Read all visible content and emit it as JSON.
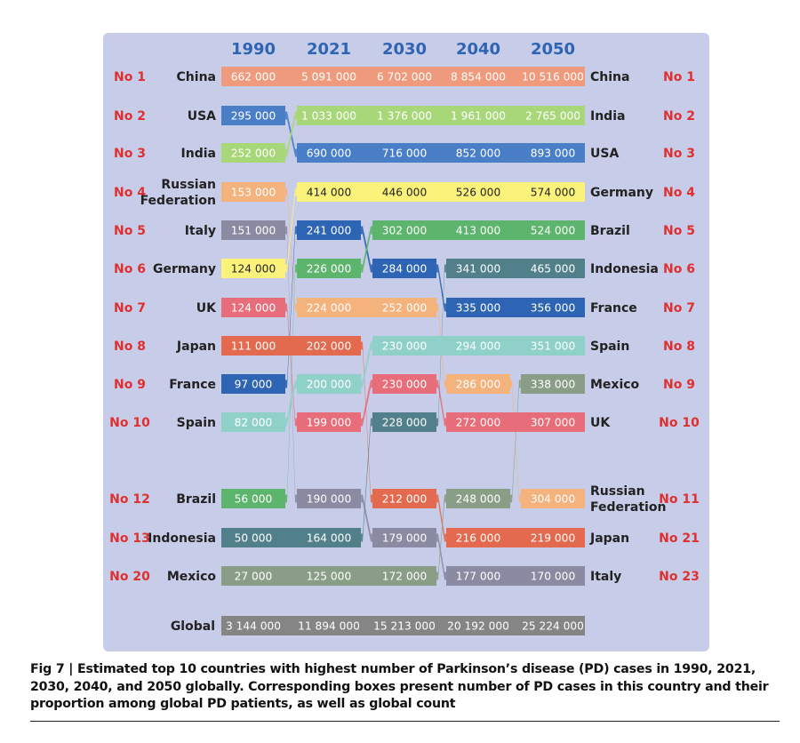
{
  "chart_data": {
    "type": "bump",
    "years": [
      "1990",
      "2021",
      "2030",
      "2040",
      "2050"
    ],
    "countries": [
      {
        "name": "China",
        "color": "#ef9a7c",
        "values": [
          662000,
          5091000,
          6702000,
          8854000,
          10516000
        ],
        "display": [
          "662 000",
          "5 091 000",
          "6 702 000",
          "8 854 000",
          "10 516 000"
        ],
        "ranks": [
          1,
          1,
          1,
          1,
          1
        ]
      },
      {
        "name": "USA",
        "color": "#4a7fc8",
        "values": [
          295000,
          690000,
          716000,
          852000,
          893000
        ],
        "display": [
          "295 000",
          "690 000",
          "716 000",
          "852 000",
          "893 000"
        ],
        "ranks": [
          2,
          3,
          3,
          3,
          3
        ]
      },
      {
        "name": "India",
        "color": "#a8d779",
        "values": [
          252000,
          1033000,
          1376000,
          1961000,
          2765000
        ],
        "display": [
          "252 000",
          "1 033 000",
          "1 376 000",
          "1 961 000",
          "2 765 000"
        ],
        "ranks": [
          3,
          2,
          2,
          2,
          2
        ]
      },
      {
        "name": "Russian\nFederation",
        "color": "#f4b27d",
        "values": [
          153000,
          224000,
          252000,
          286000,
          304000
        ],
        "display": [
          "153 000",
          "224 000",
          "252 000",
          "286 000",
          "304 000"
        ],
        "ranks": [
          4,
          7,
          7,
          9,
          11
        ]
      },
      {
        "name": "Italy",
        "color": "#8a8aa3",
        "values": [
          151000,
          190000,
          179000,
          177000,
          170000
        ],
        "display": [
          "151 000",
          "190 000",
          "179 000",
          "177 000",
          "170 000"
        ],
        "ranks": [
          5,
          12,
          13,
          20,
          23
        ]
      },
      {
        "name": "Germany",
        "color": "#fbf27b",
        "values": [
          124000,
          414000,
          446000,
          526000,
          574000
        ],
        "display": [
          "124 000",
          "414 000",
          "446 000",
          "526 000",
          "574 000"
        ],
        "ranks": [
          6,
          4,
          4,
          4,
          4
        ]
      },
      {
        "name": "UK",
        "color": "#e86d7a",
        "values": [
          124000,
          199000,
          230000,
          272000,
          307000
        ],
        "display": [
          "124 000",
          "199 000",
          "230 000",
          "272 000",
          "307 000"
        ],
        "ranks": [
          7,
          10,
          9,
          10,
          10
        ]
      },
      {
        "name": "Japan",
        "color": "#e46a4f",
        "values": [
          111000,
          202000,
          212000,
          216000,
          219000
        ],
        "display": [
          "111 000",
          "202 000",
          "212 000",
          "216 000",
          "219 000"
        ],
        "ranks": [
          8,
          8,
          12,
          13,
          21
        ]
      },
      {
        "name": "France",
        "color": "#2d65b4",
        "values": [
          97000,
          241000,
          284000,
          335000,
          356000
        ],
        "display": [
          "97 000",
          "241 000",
          "284 000",
          "335 000",
          "356 000"
        ],
        "ranks": [
          9,
          5,
          6,
          7,
          7
        ]
      },
      {
        "name": "Spain",
        "color": "#8fd0c8",
        "values": [
          82000,
          200000,
          230000,
          294000,
          351000
        ],
        "display": [
          "82 000",
          "200 000",
          "230 000",
          "294 000",
          "351 000"
        ],
        "ranks": [
          10,
          9,
          8,
          8,
          8
        ]
      },
      {
        "name": "Brazil",
        "color": "#5db46c",
        "values": [
          56000,
          226000,
          302000,
          413000,
          524000
        ],
        "display": [
          "56 000",
          "226 000",
          "302 000",
          "413 000",
          "524 000"
        ],
        "ranks": [
          12,
          6,
          5,
          5,
          5
        ]
      },
      {
        "name": "Indonesia",
        "color": "#52808a",
        "values": [
          50000,
          164000,
          228000,
          341000,
          465000
        ],
        "display": [
          "50 000",
          "164 000",
          "228 000",
          "341 000",
          "465 000"
        ],
        "ranks": [
          13,
          13,
          10,
          6,
          6
        ]
      },
      {
        "name": "Mexico",
        "color": "#8a9e87",
        "values": [
          27000,
          125000,
          172000,
          248000,
          338000
        ],
        "display": [
          "27 000",
          "125 000",
          "172 000",
          "248 000",
          "338 000"
        ],
        "ranks": [
          20,
          20,
          20,
          12,
          9
        ]
      }
    ],
    "global": {
      "label": "Global",
      "color": "#858585",
      "values": [
        3144000,
        11894000,
        15213000,
        20192000,
        25224000
      ],
      "display": [
        "3 144 000",
        "11 894 000",
        "15 213 000",
        "20 192 000",
        "25 224 000"
      ]
    },
    "left_rank_labels": [
      "No 1",
      "No 2",
      "No 3",
      "No 4",
      "No 5",
      "No 6",
      "No 7",
      "No 8",
      "No 9",
      "No 10",
      "No 12",
      "No 13",
      "No 20"
    ],
    "right_rank_labels": [
      "No 1",
      "No 2",
      "No 3",
      "No 4",
      "No 5",
      "No 6",
      "No 7",
      "No 8",
      "No 9",
      "No 10",
      "No 11",
      "No 21",
      "No 23"
    ],
    "left_country_labels": [
      "China",
      "USA",
      "India",
      "Russian\nFederation",
      "Italy",
      "Germany",
      "UK",
      "Japan",
      "France",
      "Spain",
      "Brazil",
      "Indonesia",
      "Mexico"
    ],
    "right_country_labels": [
      "China",
      "India",
      "USA",
      "Germany",
      "Brazil",
      "Indonesia",
      "France",
      "Spain",
      "Mexico",
      "UK",
      "Russian\nFederation",
      "Japan",
      "Italy"
    ]
  },
  "caption": "Fig 7 | Estimated top 10 countries with highest number of Parkinson’s disease (PD) cases in 1990, 2021, 2030, 2040, and 2050 globally. Corresponding boxes present number of PD cases in this country and their proportion among global PD patients, as well as global count",
  "colors": {
    "panel": "#c7cde9",
    "year_header": "#2f64b3",
    "rank_label": "#e02f2f",
    "country_label": "#222222"
  }
}
